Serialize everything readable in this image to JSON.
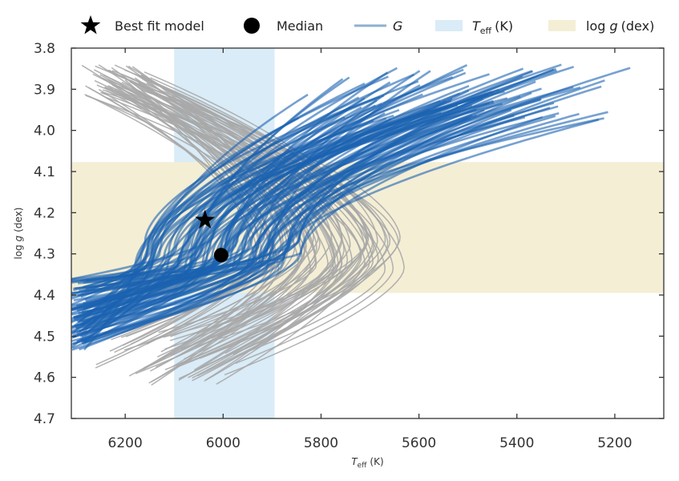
{
  "chart_data": {
    "type": "line",
    "title": "",
    "xlabel_main": "T",
    "xlabel_sub": "eff",
    "xlabel_unit": "(K)",
    "ylabel_main": "log ",
    "ylabel_italic": "g",
    "ylabel_unit": "(dex)",
    "xlim": [
      6310,
      5100
    ],
    "ylim": [
      3.8,
      4.7
    ],
    "x_reversed": true,
    "y_reversed": true,
    "x_ticks": [
      6200,
      6000,
      5800,
      5600,
      5400,
      5200
    ],
    "y_ticks": [
      3.8,
      3.9,
      4.0,
      4.1,
      4.2,
      4.3,
      4.4,
      4.5,
      4.6,
      4.7
    ],
    "x_tick_labels": [
      "6200",
      "6000",
      "5800",
      "5600",
      "5400",
      "5200"
    ],
    "y_tick_labels": [
      "3.8",
      "3.9",
      "4.0",
      "4.1",
      "4.2",
      "4.3",
      "4.4",
      "4.5",
      "4.6",
      "4.7"
    ],
    "grid": false,
    "legend_position": "top",
    "teff_band": {
      "x0": 6100,
      "x1": 5895
    },
    "logg_band": {
      "y0": 4.077,
      "y1": 4.395
    },
    "best_fit": {
      "x": 6037,
      "y": 4.218
    },
    "median": {
      "x": 6004,
      "y": 4.303
    },
    "tracks": {
      "gray_count": 70,
      "blue_count": 100,
      "vertex_teff_range_gray": [
        5620,
        5940
      ],
      "vertex_teff_range_blue": [
        5840,
        6180
      ],
      "vertex_logg_range": [
        4.26,
        4.34
      ],
      "top_logg": 3.84,
      "bottom_logg": 4.62
    },
    "colors": {
      "gray_tracks": "#a9a9a9",
      "blue_tracks": "#1a63b0",
      "teff_band": "#d9ecf7",
      "logg_band": "#f4eed5",
      "markers": "#000000"
    },
    "legend": {
      "best_fit": "Best fit model",
      "median": "Median",
      "g_label": "G",
      "teff_main": "T",
      "teff_sub": "eff",
      "teff_unit": "(K)",
      "logg_main": "log ",
      "logg_italic": "g",
      "logg_unit": "(dex)"
    }
  }
}
